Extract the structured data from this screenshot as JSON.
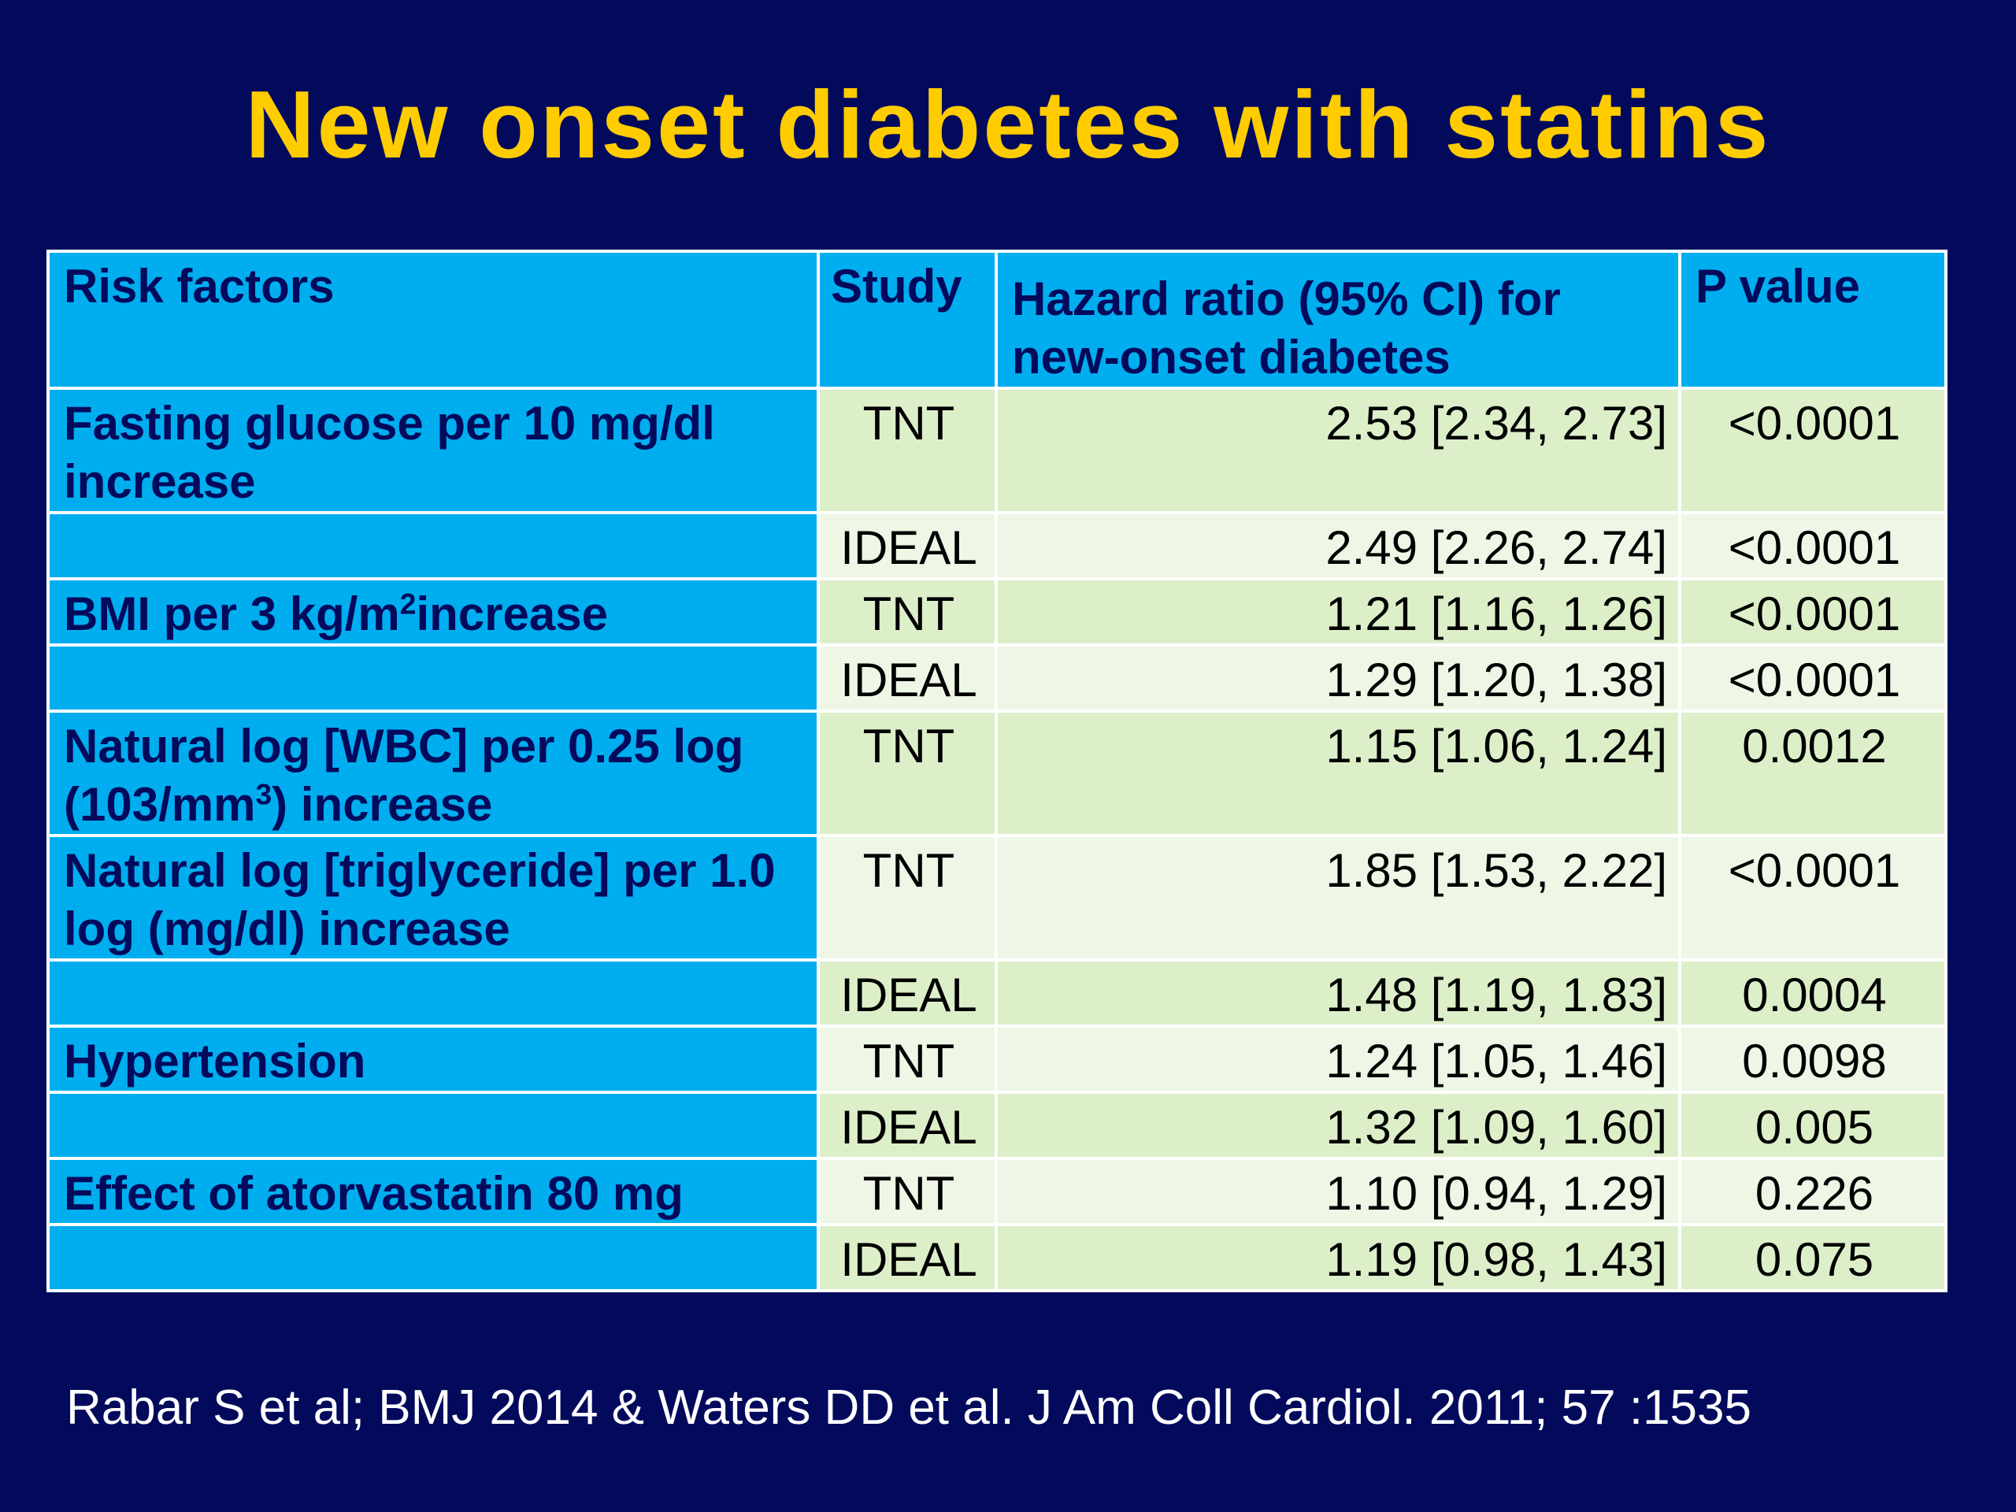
{
  "title": "New onset diabetes with statins",
  "table": {
    "headers": {
      "risk_factors": "Risk factors",
      "study": "Study",
      "hazard_ratio": "Hazard ratio (95% CI) for new-onset diabetes",
      "p_value": "P value"
    },
    "rows": [
      {
        "risk_factor_parts": [
          "Fasting glucose per 10 mg/dl increase"
        ],
        "study": "TNT",
        "hazard_ratio": "2.53 [2.34, 2.73]",
        "p_value": "<0.0001"
      },
      {
        "risk_factor_parts": [
          ""
        ],
        "study": "IDEAL",
        "hazard_ratio": "2.49 [2.26, 2.74]",
        "p_value": "<0.0001"
      },
      {
        "risk_factor_parts": [
          "BMI per 3 kg/m",
          "2",
          "increase"
        ],
        "study": "TNT",
        "hazard_ratio": "1.21 [1.16, 1.26]",
        "p_value": "<0.0001"
      },
      {
        "risk_factor_parts": [
          ""
        ],
        "study": "IDEAL",
        "hazard_ratio": "1.29 [1.20, 1.38]",
        "p_value": "<0.0001"
      },
      {
        "risk_factor_parts": [
          "Natural log [WBC] per 0.25 log (103/mm",
          "3",
          ") increase"
        ],
        "study": "TNT",
        "hazard_ratio": "1.15 [1.06, 1.24]",
        "p_value": "0.0012"
      },
      {
        "risk_factor_parts": [
          "Natural log [triglyceride] per 1.0 log (mg/dl) increase"
        ],
        "study": "TNT",
        "hazard_ratio": "1.85 [1.53, 2.22]",
        "p_value": "<0.0001"
      },
      {
        "risk_factor_parts": [
          ""
        ],
        "study": "IDEAL",
        "hazard_ratio": "1.48 [1.19, 1.83]",
        "p_value": "0.0004"
      },
      {
        "risk_factor_parts": [
          "Hypertension"
        ],
        "study": "TNT",
        "hazard_ratio": "1.24 [1.05, 1.46]",
        "p_value": "0.0098"
      },
      {
        "risk_factor_parts": [
          ""
        ],
        "study": "IDEAL",
        "hazard_ratio": "1.32 [1.09, 1.60]",
        "p_value": "0.005"
      },
      {
        "risk_factor_parts": [
          "Effect of atorvastatin 80 mg"
        ],
        "study": "TNT",
        "hazard_ratio": "1.10 [0.94, 1.29]",
        "p_value": "0.226"
      },
      {
        "risk_factor_parts": [
          ""
        ],
        "study": "IDEAL",
        "hazard_ratio": "1.19 [0.98, 1.43]",
        "p_value": "0.075"
      }
    ]
  },
  "citation": "Rabar S et al; BMJ 2014 & Waters DD et al. J Am Coll Cardiol. 2011; 57 :1535",
  "colors": {
    "background": "#030A5C",
    "title": "#FFCC00",
    "risk_factor_cells": "#00AEEF",
    "value_cells_dark": "#DDEFC9",
    "value_cells_light": "#EEF6E6"
  }
}
